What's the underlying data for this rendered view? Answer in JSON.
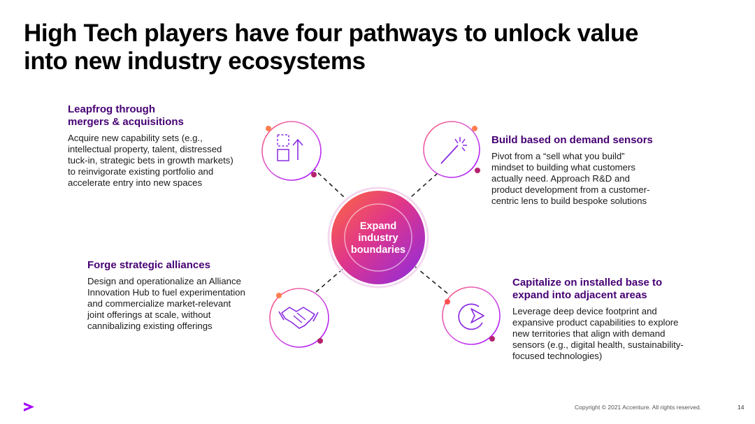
{
  "title": {
    "line1": "High Tech players have four pathways to unlock value",
    "line2": "into new industry ecosystems"
  },
  "center": {
    "line1": "Expand",
    "line2": "industry",
    "line3": "boundaries"
  },
  "pathways": {
    "leapfrog": {
      "heading1": "Leapfrog through",
      "heading2": "mergers & acquisitions",
      "text": [
        "Acquire new capability sets (e.g.,",
        "intellectual property, talent, distressed",
        "tuck-in, strategic bets in growth markets)",
        "to reinvigorate existing portfolio and",
        "accelerate entry into new spaces"
      ],
      "icon": "acquisition-icon"
    },
    "build": {
      "heading1": "Build based on demand sensors",
      "text": [
        "Pivot from a “sell what you build”",
        "mindset to building what customers",
        "actually need. Approach R&D and",
        "product development from a customer-",
        "centric lens to build bespoke solutions"
      ],
      "icon": "magic-wand-icon"
    },
    "forge": {
      "heading1": "Forge strategic alliances",
      "text": [
        "Design and operationalize an Alliance",
        "Innovation Hub to fuel experimentation",
        "and commercialize market-relevant",
        "joint offerings at scale, without",
        "cannibalizing existing offerings"
      ],
      "icon": "handshake-icon"
    },
    "capitalize": {
      "heading1": "Capitalize on installed base to",
      "heading2": "expand into adjacent areas",
      "text": [
        "Leverage deep device footprint and",
        "expansive product capabilities to explore",
        "new territories that align with demand",
        "sensors (e.g., digital health, sustainability-",
        "focused technologies)"
      ],
      "icon": "target-arrow-icon"
    }
  },
  "footer": {
    "copyright": "Copyright © 2021 Accenture. All rights reserved.",
    "page": "14",
    "logo": "accenture-greater-than-logo"
  },
  "colors": {
    "heading": "#460073",
    "accent_purple": "#a100ff",
    "orange": "#ff7f50",
    "magenta": "#b4236e",
    "coral": "#ff5050"
  }
}
